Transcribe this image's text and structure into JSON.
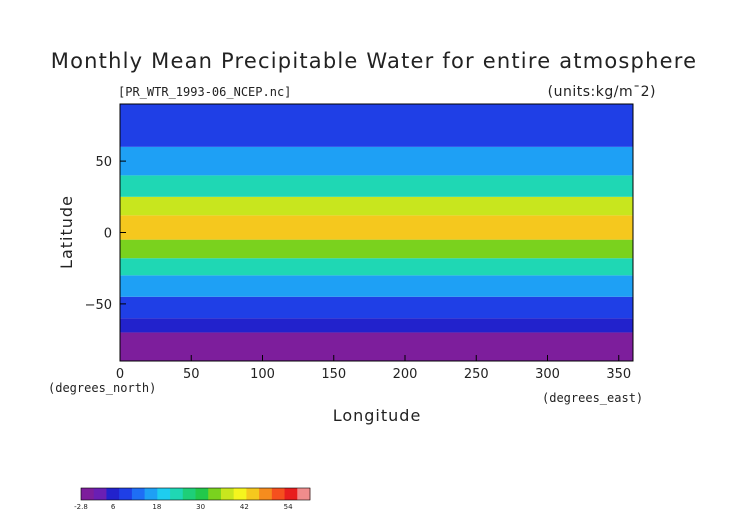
{
  "chart_data": {
    "type": "heatmap",
    "title": "Monthly Mean Precipitable Water for entire atmosphere",
    "subtitle": "[PR_WTR_1993-06_NCEP.nc]",
    "units_label": "(units:kg/m¯2)",
    "xlabel": "Longitude",
    "ylabel": "Latitude",
    "x_unit_note": "(degrees_east)",
    "y_unit_note": "(degrees_north)",
    "xlim": [
      0,
      360
    ],
    "ylim": [
      -90,
      90
    ],
    "x_ticks": [
      0,
      50,
      100,
      150,
      200,
      250,
      300,
      350
    ],
    "y_ticks": [
      -50,
      0,
      50
    ],
    "colorbar": {
      "min": -2.8,
      "max": 60,
      "tick_values": [
        -2.8,
        6,
        18,
        30,
        42,
        54
      ],
      "tick_labels": [
        "-2.8",
        "6",
        "18",
        "30",
        "42",
        "54"
      ],
      "colors": [
        "#7d1e9c",
        "#6a1fb4",
        "#2222cc",
        "#1f3fe6",
        "#1e6ef5",
        "#1ea0f5",
        "#1ecdf0",
        "#1fd7b4",
        "#1ecf78",
        "#22c84a",
        "#7ad21e",
        "#c8e61e",
        "#f5f51e",
        "#f5c81e",
        "#f58c1e",
        "#f5501e",
        "#e81e1e",
        "#f08c8c"
      ]
    },
    "field_zones": [
      {
        "lat_range": [
          -90,
          -70
        ],
        "value": -1
      },
      {
        "lat_range": [
          -70,
          -60
        ],
        "value": 5
      },
      {
        "lat_range": [
          -60,
          -45
        ],
        "value": 10
      },
      {
        "lat_range": [
          -45,
          -30
        ],
        "value": 16
      },
      {
        "lat_range": [
          -30,
          -18
        ],
        "value": 22
      },
      {
        "lat_range": [
          -18,
          -5
        ],
        "value": 34
      },
      {
        "lat_range": [
          -5,
          12
        ],
        "value": 46
      },
      {
        "lat_range": [
          12,
          25
        ],
        "value": 36
      },
      {
        "lat_range": [
          25,
          40
        ],
        "value": 24
      },
      {
        "lat_range": [
          40,
          60
        ],
        "value": 16
      },
      {
        "lat_range": [
          60,
          90
        ],
        "value": 10
      }
    ]
  }
}
